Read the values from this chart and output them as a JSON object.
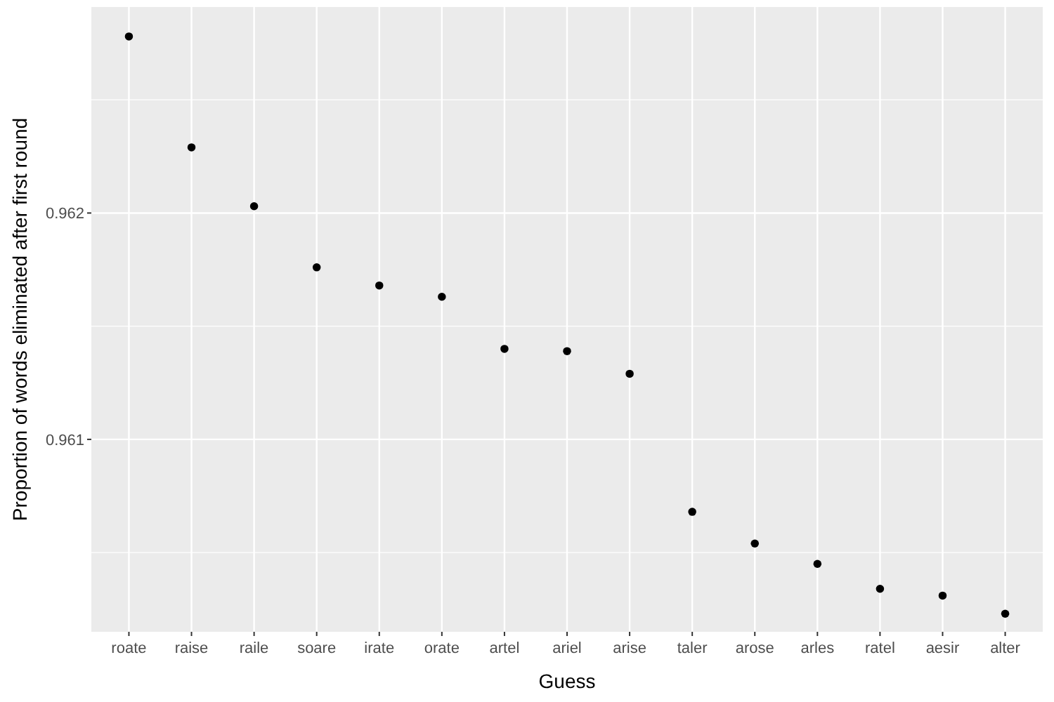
{
  "chart_data": {
    "type": "scatter",
    "xlabel": "Guess",
    "ylabel": "Proportion of words eliminated after first round",
    "categories": [
      "roate",
      "raise",
      "raile",
      "soare",
      "irate",
      "orate",
      "artel",
      "ariel",
      "arise",
      "taler",
      "arose",
      "arles",
      "ratel",
      "aesir",
      "alter"
    ],
    "values": [
      0.96278,
      0.96229,
      0.96203,
      0.96176,
      0.96168,
      0.96163,
      0.9614,
      0.96139,
      0.96129,
      0.96068,
      0.96054,
      0.96045,
      0.96034,
      0.96031,
      0.96023
    ],
    "color": "#000000",
    "marker": "circle",
    "grid": true,
    "ylim": [
      0.96015,
      0.96291
    ],
    "yticks": [
      {
        "value": 0.9605,
        "label": null
      },
      {
        "value": 0.961,
        "label": "0.961"
      },
      {
        "value": 0.9615,
        "label": null
      },
      {
        "value": 0.962,
        "label": "0.962"
      },
      {
        "value": 0.9625,
        "label": null
      }
    ]
  }
}
